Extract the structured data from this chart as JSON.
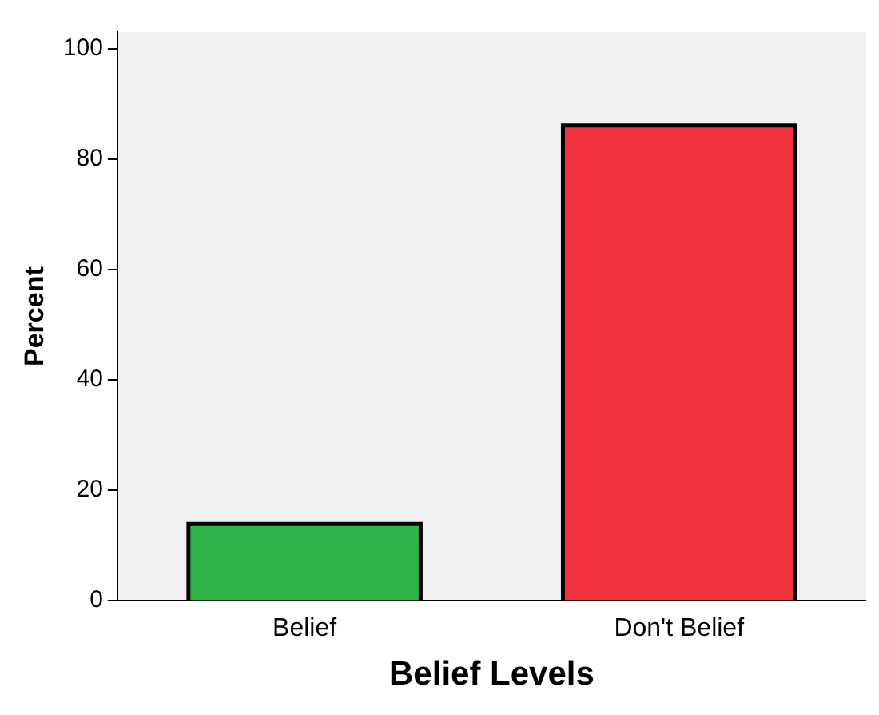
{
  "chart_data": {
    "type": "bar",
    "xlabel": "Belief Levels",
    "ylabel": "Percent",
    "categories": [
      "Belief",
      "Don't Belief"
    ],
    "values": [
      13.9,
      86.1
    ],
    "colors": [
      "#2fb44a",
      "#f0333c"
    ],
    "ylim": [
      0,
      103
    ],
    "yticks": [
      0,
      20,
      40,
      60,
      80,
      100
    ],
    "grid": false,
    "legend": false
  }
}
